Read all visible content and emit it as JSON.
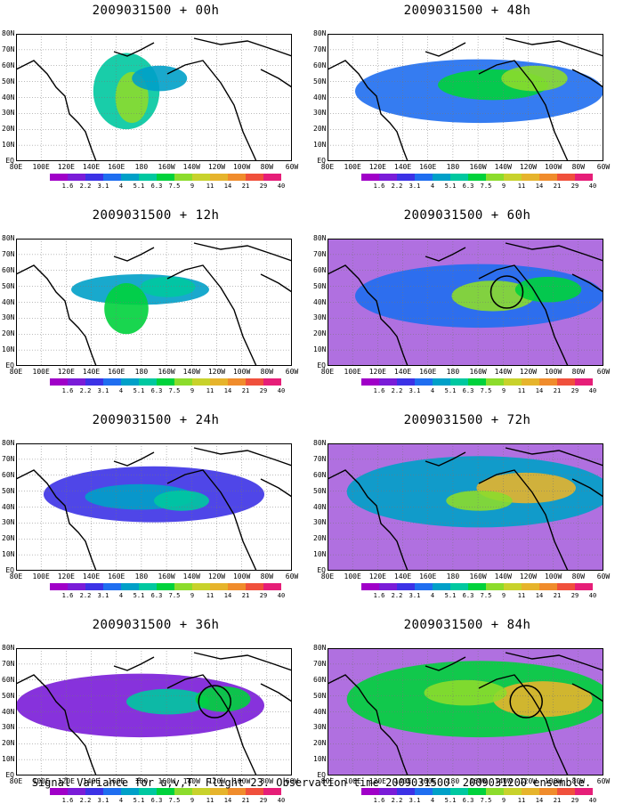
{
  "chart_data": [
    {
      "type": "heatmap",
      "title": "2009031500 + 00h"
    },
    {
      "type": "heatmap",
      "title": "2009031500 + 48h"
    },
    {
      "type": "heatmap",
      "title": "2009031500 + 12h"
    },
    {
      "type": "heatmap",
      "title": "2009031500 + 60h"
    },
    {
      "type": "heatmap",
      "title": "2009031500 + 24h"
    },
    {
      "type": "heatmap",
      "title": "2009031500 + 72h"
    },
    {
      "type": "heatmap",
      "title": "2009031500 + 36h"
    },
    {
      "type": "heatmap",
      "title": "2009031500 + 84h"
    }
  ],
  "axes": {
    "x_ticks": [
      "80E",
      "100E",
      "120E",
      "140E",
      "160E",
      "180",
      "160W",
      "140W",
      "120W",
      "100W",
      "80W",
      "60W"
    ],
    "y_ticks": [
      "EQ",
      "10N",
      "20N",
      "30N",
      "40N",
      "50N",
      "60N",
      "70N",
      "80N"
    ]
  },
  "colorbar": {
    "labels": [
      "1.6",
      "2.2",
      "3.1",
      "4",
      "5.1",
      "6.3",
      "7.5",
      "9",
      "11",
      "14",
      "21",
      "29",
      "40"
    ],
    "colors": [
      "#a000c8",
      "#7a1cd8",
      "#3c32e6",
      "#1f6ef0",
      "#00a0c8",
      "#00c8a0",
      "#00d23c",
      "#8cdc2c",
      "#c8d22c",
      "#e6b42c",
      "#f08c2c",
      "#f0503c",
      "#e61e78"
    ]
  },
  "caption": "Signal Variance for u,v,T. Flight 23. Observation time 2009031500. 2009031200 ensemble."
}
